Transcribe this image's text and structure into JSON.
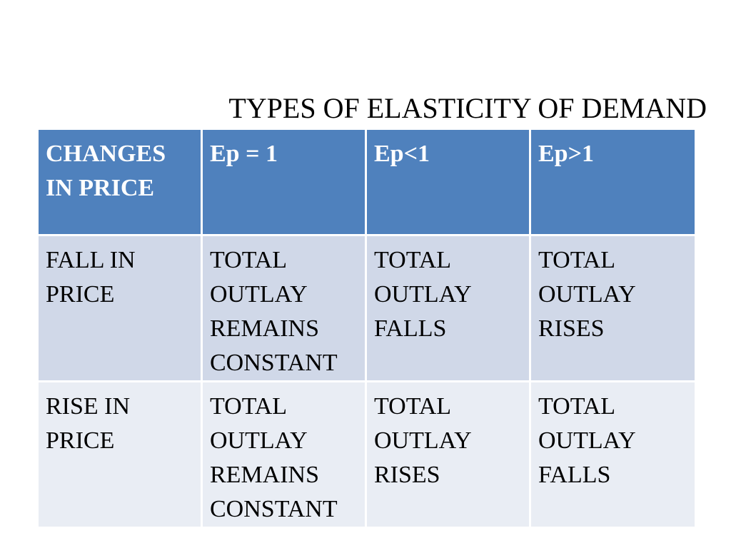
{
  "title": "TYPES OF ELASTICITY OF DEMAND",
  "table": {
    "headers": [
      "CHANGES IN PRICE",
      "Ep = 1",
      "Ep<1",
      "Ep>1"
    ],
    "rows": [
      [
        "FALL IN PRICE",
        "TOTAL OUTLAY REMAINS CONSTANT",
        "TOTAL OUTLAY FALLS",
        "TOTAL OUTLAY RISES"
      ],
      [
        "RISE IN PRICE",
        "TOTAL OUTLAY REMAINS CONSTANT",
        "TOTAL OUTLAY RISES",
        "TOTAL OUTLAY FALLS"
      ]
    ]
  },
  "colors": {
    "header_bg": "#4f81bd",
    "row1_bg": "#d0d8e8",
    "row2_bg": "#e9edf4",
    "header_text": "#ffffff",
    "body_text": "#000000"
  }
}
